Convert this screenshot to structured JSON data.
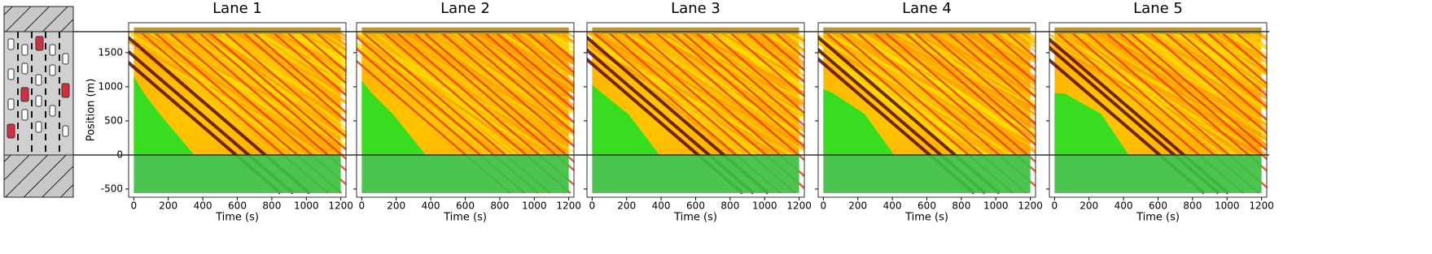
{
  "chart_data": [
    {
      "type": "heatmap",
      "title": "Lane 1",
      "xlabel": "Time (s)",
      "ylabel": "Position (m)",
      "xlim": [
        -30,
        1230
      ],
      "ylim": [
        -620,
        1940
      ],
      "xticks": [
        0,
        200,
        400,
        600,
        800,
        1000,
        1200
      ],
      "yticks": [
        -500,
        0,
        500,
        1000,
        1500
      ],
      "ytick_labels": true
    },
    {
      "type": "heatmap",
      "title": "Lane 2",
      "xlabel": "Time (s)",
      "xlim": [
        -30,
        1230
      ],
      "ylim": [
        -620,
        1940
      ],
      "xticks": [
        0,
        200,
        400,
        600,
        800,
        1000,
        1200
      ],
      "yticks": [
        -500,
        0,
        500,
        1000,
        1500
      ],
      "ytick_labels": false
    },
    {
      "type": "heatmap",
      "title": "Lane 3",
      "xlabel": "Time (s)",
      "xlim": [
        -30,
        1230
      ],
      "ylim": [
        -620,
        1940
      ],
      "xticks": [
        0,
        200,
        400,
        600,
        800,
        1000,
        1200
      ],
      "yticks": [
        -500,
        0,
        500,
        1000,
        1500
      ],
      "ytick_labels": false
    },
    {
      "type": "heatmap",
      "title": "Lane 4",
      "xlabel": "Time (s)",
      "xlim": [
        -30,
        1230
      ],
      "ylim": [
        -620,
        1940
      ],
      "xticks": [
        0,
        200,
        400,
        600,
        800,
        1000,
        1200
      ],
      "yticks": [
        -500,
        0,
        500,
        1000,
        1500
      ],
      "ytick_labels": false
    },
    {
      "type": "heatmap",
      "title": "Lane 5",
      "xlabel": "Time (s)",
      "xlim": [
        -30,
        1230
      ],
      "ylim": [
        -620,
        1940
      ],
      "xticks": [
        0,
        200,
        400,
        600,
        800,
        1000,
        1200
      ],
      "yticks": [
        -500,
        0,
        500,
        1000,
        1500
      ],
      "ytick_labels": false
    }
  ]
}
